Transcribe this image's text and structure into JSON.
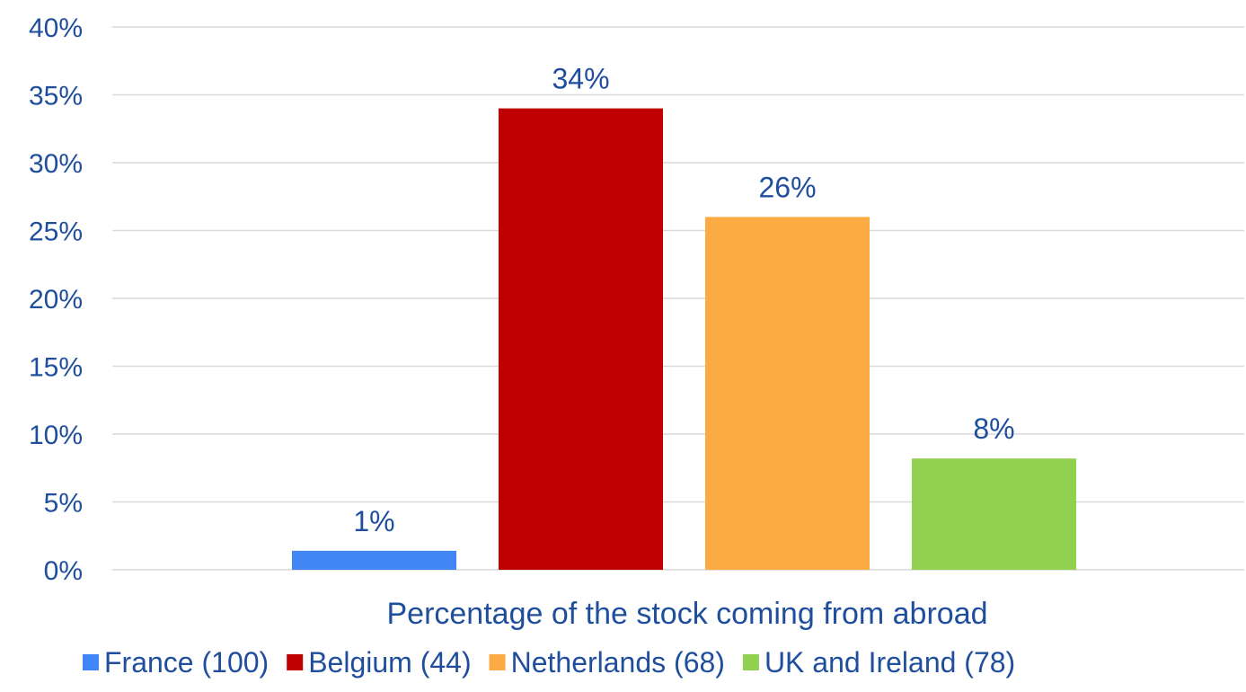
{
  "chart_data": {
    "type": "bar",
    "xlabel": "Percentage of the stock coming from abroad",
    "ylim": [
      0,
      40
    ],
    "ytick_step": 5,
    "ytick_suffix": "%",
    "grid": true,
    "legend_position": "bottom",
    "categories": [
      "Percentage of the stock coming from abroad"
    ],
    "series": [
      {
        "name": "France (100)",
        "values": [
          1.4
        ],
        "label": "1%",
        "color": "#4285f4"
      },
      {
        "name": "Belgium (44)",
        "values": [
          34
        ],
        "label": "34%",
        "color": "#c00000"
      },
      {
        "name": "Netherlands (68)",
        "values": [
          26
        ],
        "label": "26%",
        "color": "#fbab42"
      },
      {
        "name": "UK and Ireland (78)",
        "values": [
          8.2
        ],
        "label": "8%",
        "color": "#92d050"
      }
    ]
  }
}
